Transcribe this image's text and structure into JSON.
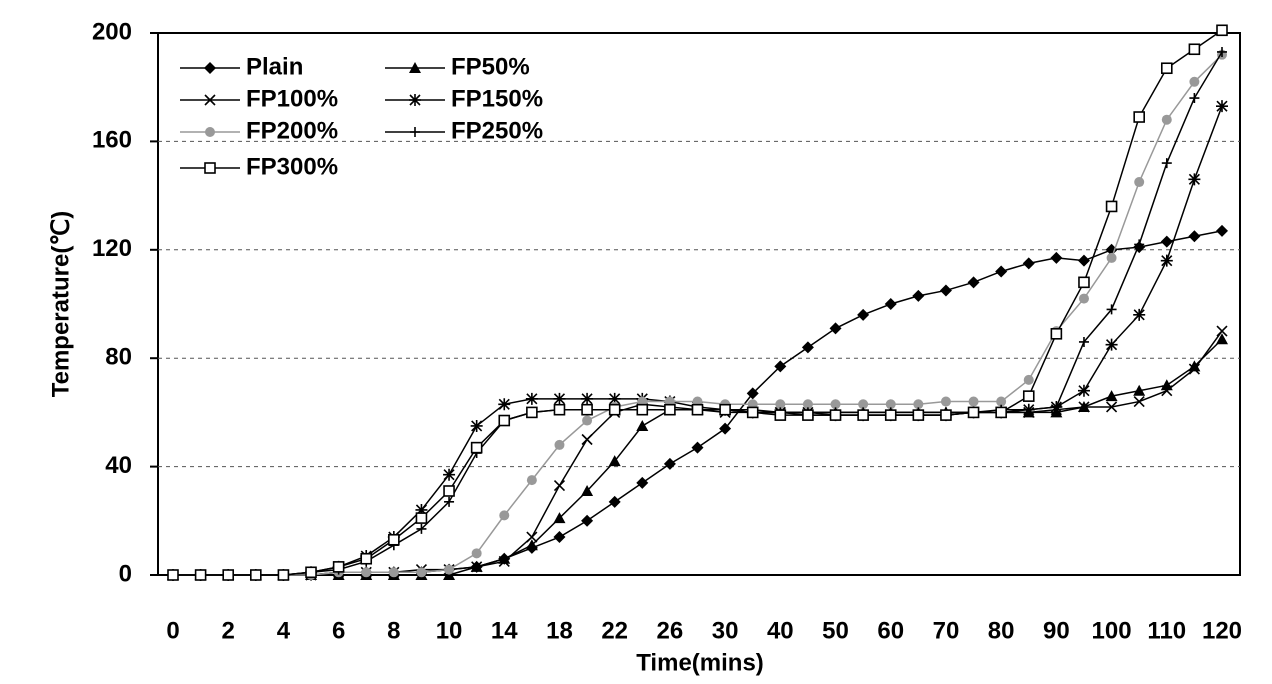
{
  "chart_data": {
    "type": "line",
    "xlabel": "Time(mins)",
    "ylabel": "Temperature(℃)",
    "categories": [
      "0",
      null,
      "2",
      null,
      "4",
      null,
      "6",
      null,
      "8",
      null,
      "10",
      null,
      "14",
      null,
      "18",
      null,
      "22",
      null,
      "26",
      null,
      "30",
      null,
      "40",
      null,
      "50",
      null,
      "60",
      null,
      "70",
      null,
      "80",
      null,
      "90",
      null,
      "100",
      null,
      "110",
      null,
      "120"
    ],
    "ylim": [
      0,
      200
    ],
    "yticks": [
      0,
      40,
      80,
      120,
      160,
      200
    ],
    "grid": true,
    "legend": "upper left",
    "series": [
      {
        "name": "Plain",
        "color": "#000000",
        "marker": "diamond",
        "values": [
          0,
          0,
          0,
          0,
          0,
          0,
          1,
          1,
          1,
          1,
          2,
          3,
          6,
          10,
          14,
          20,
          27,
          34,
          41,
          47,
          54,
          67,
          77,
          84,
          91,
          96,
          100,
          103,
          105,
          108,
          112,
          115,
          117,
          116,
          120,
          121,
          123,
          125,
          127
        ]
      },
      {
        "name": "FP50%",
        "color": "#000000",
        "marker": "triangle",
        "values": [
          0,
          0,
          0,
          0,
          0,
          0,
          0,
          0,
          0,
          0,
          0,
          3,
          6,
          11,
          21,
          31,
          42,
          55,
          61,
          61,
          61,
          61,
          60,
          60,
          60,
          60,
          60,
          60,
          60,
          60,
          60,
          60,
          60,
          62,
          66,
          68,
          70,
          77,
          87
        ]
      },
      {
        "name": "FP100%",
        "color": "#000000",
        "marker": "x",
        "values": [
          0,
          0,
          0,
          0,
          0,
          0,
          1,
          1,
          1,
          2,
          2,
          3,
          5,
          14,
          33,
          50,
          60,
          63,
          62,
          61,
          60,
          60,
          60,
          59,
          59,
          59,
          59,
          59,
          59,
          60,
          60,
          60,
          61,
          62,
          62,
          64,
          68,
          76,
          90
        ]
      },
      {
        "name": "FP150%",
        "color": "#000000",
        "marker": "star",
        "values": [
          0,
          0,
          0,
          0,
          0,
          1,
          3,
          7,
          14,
          24,
          37,
          55,
          63,
          65,
          65,
          65,
          65,
          65,
          64,
          62,
          61,
          60,
          60,
          60,
          59,
          59,
          59,
          59,
          59,
          60,
          60,
          61,
          62,
          68,
          85,
          96,
          116,
          146,
          173
        ]
      },
      {
        "name": "FP200%",
        "color": "#999999",
        "marker": "circle",
        "values": [
          0,
          0,
          0,
          0,
          0,
          0,
          1,
          1,
          1,
          1,
          2,
          8,
          22,
          35,
          48,
          57,
          62,
          64,
          64,
          64,
          63,
          63,
          63,
          63,
          63,
          63,
          63,
          63,
          64,
          64,
          64,
          72,
          90,
          102,
          117,
          145,
          168,
          182,
          192
        ]
      },
      {
        "name": "FP250%",
        "color": "#000000",
        "marker": "plus",
        "values": [
          0,
          0,
          0,
          0,
          0,
          1,
          2,
          5,
          11,
          17,
          27,
          45,
          57,
          60,
          61,
          61,
          61,
          61,
          61,
          61,
          61,
          60,
          60,
          60,
          60,
          60,
          60,
          60,
          60,
          60,
          61,
          61,
          62,
          86,
          98,
          122,
          152,
          176,
          193
        ]
      },
      {
        "name": "FP300%",
        "color": "#000000",
        "marker": "square",
        "values": [
          0,
          0,
          0,
          0,
          0,
          1,
          3,
          6,
          13,
          21,
          31,
          47,
          57,
          60,
          61,
          61,
          61,
          61,
          61,
          61,
          61,
          60,
          59,
          59,
          59,
          59,
          59,
          59,
          59,
          60,
          60,
          66,
          89,
          108,
          136,
          169,
          187,
          194,
          201
        ]
      }
    ]
  }
}
